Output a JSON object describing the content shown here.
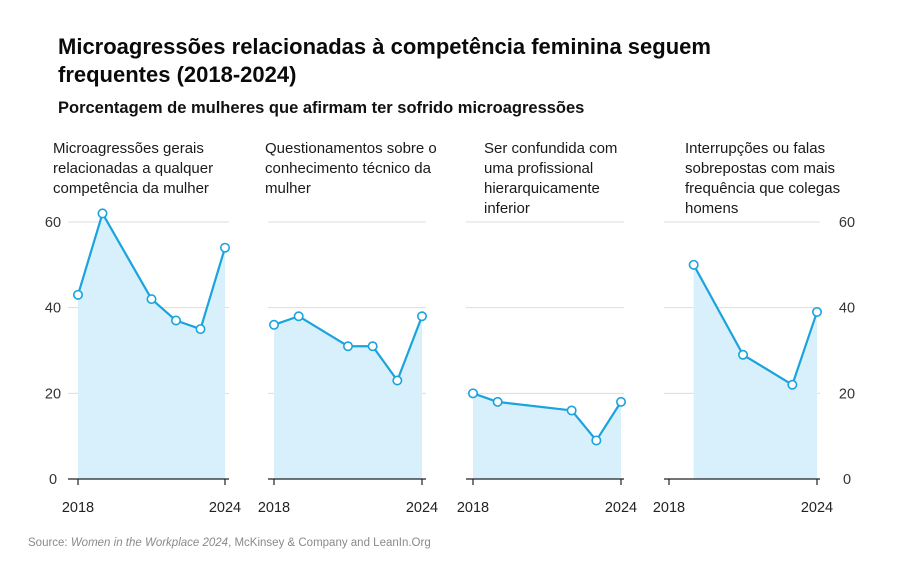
{
  "title": "Microagressões relacionadas à competência feminina seguem frequentes (2018-2024)",
  "subtitle": "Porcentagem de mulheres que afirmam ter sofrido microagressões",
  "source": {
    "prefix": "Source: ",
    "publication": "Women in the Workplace 2024",
    "suffix": ", McKinsey & Company and LeanIn.Org"
  },
  "colors": {
    "line": "#1aa3dd",
    "area": "#d8f0fb",
    "grid": "#dddddd"
  },
  "chart_data": [
    {
      "type": "area",
      "title": "Microagressões gerais relacionadas a qualquer competência da mulher",
      "x": [
        2018,
        2019,
        2021,
        2022,
        2023,
        2024
      ],
      "y": [
        43,
        62,
        42,
        37,
        35,
        54
      ],
      "xticks": [
        "2018",
        "2024"
      ],
      "yticks": [
        "60",
        "40",
        "20",
        "0"
      ],
      "ylim": [
        0,
        60
      ],
      "grid": true
    },
    {
      "type": "area",
      "title": "Questionamentos sobre o conhecimento técnico da mulher",
      "x": [
        2018,
        2019,
        2021,
        2022,
        2023,
        2024
      ],
      "y": [
        36,
        38,
        31,
        31,
        23,
        38
      ],
      "xticks": [
        "2018",
        "2024"
      ],
      "ylim": [
        0,
        60
      ],
      "grid": true
    },
    {
      "type": "area",
      "title": "Ser confundida com uma profissional hierarquicamente inferior",
      "x": [
        2018,
        2019,
        2022,
        2023,
        2024
      ],
      "y": [
        20,
        18,
        16,
        9,
        18
      ],
      "xticks": [
        "2018",
        "2024"
      ],
      "ylim": [
        0,
        60
      ],
      "grid": true
    },
    {
      "type": "area",
      "title": "Interrupções ou falas sobrepostas com mais frequência que colegas homens",
      "x": [
        2019,
        2021,
        2023,
        2024
      ],
      "y": [
        50,
        29,
        22,
        39
      ],
      "xticks": [
        "2018",
        "2024"
      ],
      "yticks": [
        "60",
        "40",
        "20",
        "0"
      ],
      "ylim": [
        0,
        60
      ],
      "grid": true
    }
  ]
}
